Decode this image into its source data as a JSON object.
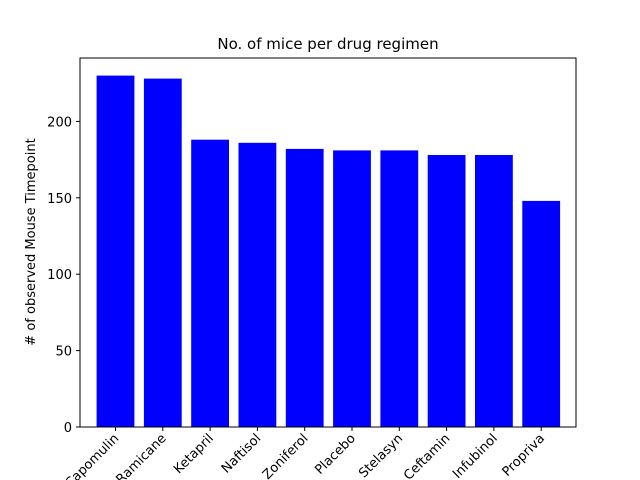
{
  "chart_data": {
    "type": "bar",
    "title": "No. of mice per drug regimen",
    "xlabel": "",
    "ylabel": "# of observed Mouse Timepoint",
    "categories": [
      "Capomulin",
      "Ramicane",
      "Ketapril",
      "Naftisol",
      "Zoniferol",
      "Placebo",
      "Stelasyn",
      "Ceftamin",
      "Infubinol",
      "Propriva"
    ],
    "values": [
      230,
      228,
      188,
      186,
      182,
      181,
      181,
      178,
      178,
      148
    ],
    "ylim": [
      0,
      241.5
    ],
    "yticks": [
      0,
      50,
      100,
      150,
      200
    ],
    "bar_color": "#0000ff",
    "grid": false,
    "legend": "none"
  }
}
